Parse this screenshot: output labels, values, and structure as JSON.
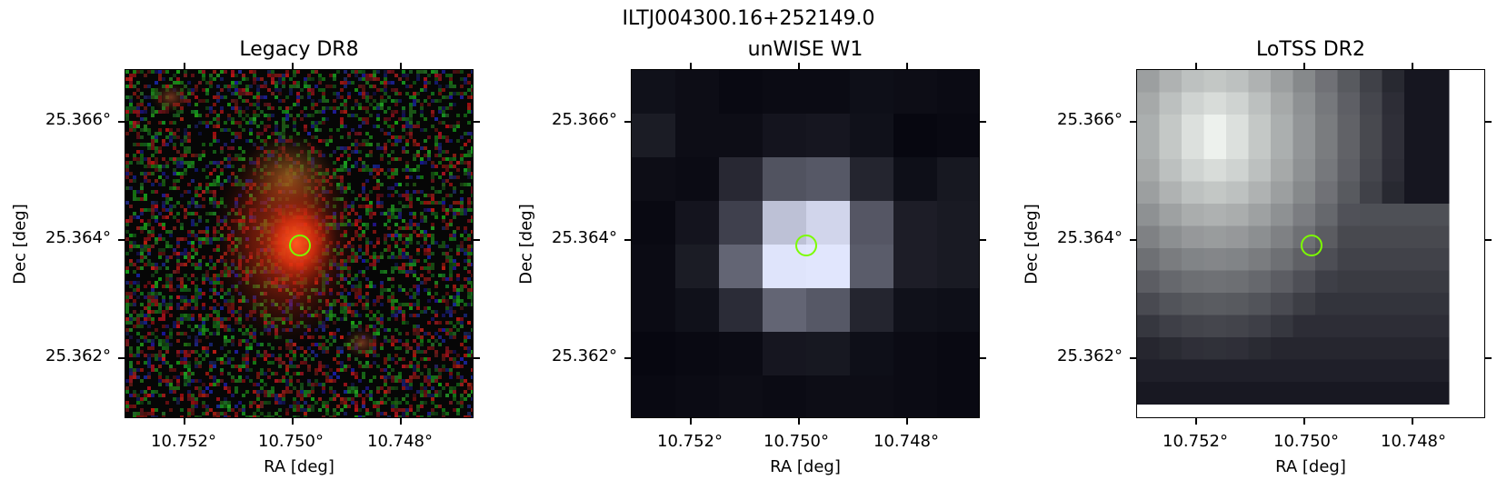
{
  "figure_title": "ILTJ004300.16+252149.0",
  "panels": [
    {
      "title": "Legacy DR8",
      "x_ticks": [
        "10.752°",
        "10.750°",
        "10.748°"
      ],
      "y_ticks": [
        "25.366°",
        "25.364°",
        "25.362°"
      ],
      "xlabel": "RA [deg]",
      "ylabel": "Dec [deg]"
    },
    {
      "title": "unWISE W1",
      "x_ticks": [
        "10.752°",
        "10.750°",
        "10.748°"
      ],
      "y_ticks": [
        "25.366°",
        "25.364°",
        "25.362°"
      ],
      "xlabel": "RA [deg]",
      "ylabel": "Dec [deg]"
    },
    {
      "title": "LoTSS DR2",
      "x_ticks": [
        "10.752°",
        "10.750°",
        "10.748°"
      ],
      "y_ticks": [
        "25.366°",
        "25.364°",
        "25.362°"
      ],
      "xlabel": "RA [deg]",
      "ylabel": "Dec [deg]"
    }
  ],
  "colors": {
    "marker": "#7cfc00",
    "legacy_source": "#ff4a1a",
    "unwise_peak": "#ffffff",
    "lotss_peak": "#f2fbf8"
  }
}
